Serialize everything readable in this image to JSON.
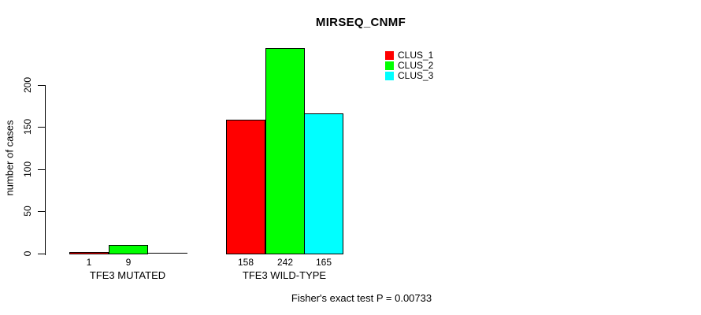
{
  "title": "MIRSEQ_CNMF",
  "y_axis": {
    "label": "number of cases"
  },
  "legend": {
    "items": [
      {
        "label": "CLUS_1",
        "color": "#ff0000"
      },
      {
        "label": "CLUS_2",
        "color": "#00ff00"
      },
      {
        "label": "CLUS_3",
        "color": "#00ffff"
      }
    ]
  },
  "footer": "Fisher's exact test P = 0.00733",
  "chart_data": {
    "type": "bar",
    "title": "MIRSEQ_CNMF",
    "xlabel": "",
    "ylabel": "number of cases",
    "categories": [
      "TFE3 MUTATED",
      "TFE3 WILD-TYPE"
    ],
    "series": [
      {
        "name": "CLUS_1",
        "color": "#ff0000",
        "values": [
          1,
          158
        ]
      },
      {
        "name": "CLUS_2",
        "color": "#00ff00",
        "values": [
          9,
          242
        ]
      },
      {
        "name": "CLUS_3",
        "color": "#00ffff",
        "values": [
          0,
          165
        ]
      }
    ],
    "bar_value_labels": [
      [
        "1",
        "9",
        ""
      ],
      [
        "158",
        "242",
        "165"
      ]
    ],
    "ylim": [
      0,
      200
    ],
    "y_ticks": [
      0,
      50,
      100,
      150,
      200
    ],
    "grid": false,
    "legend_position": "upper-right",
    "annotation": "Fisher's exact test P = 0.00733"
  }
}
